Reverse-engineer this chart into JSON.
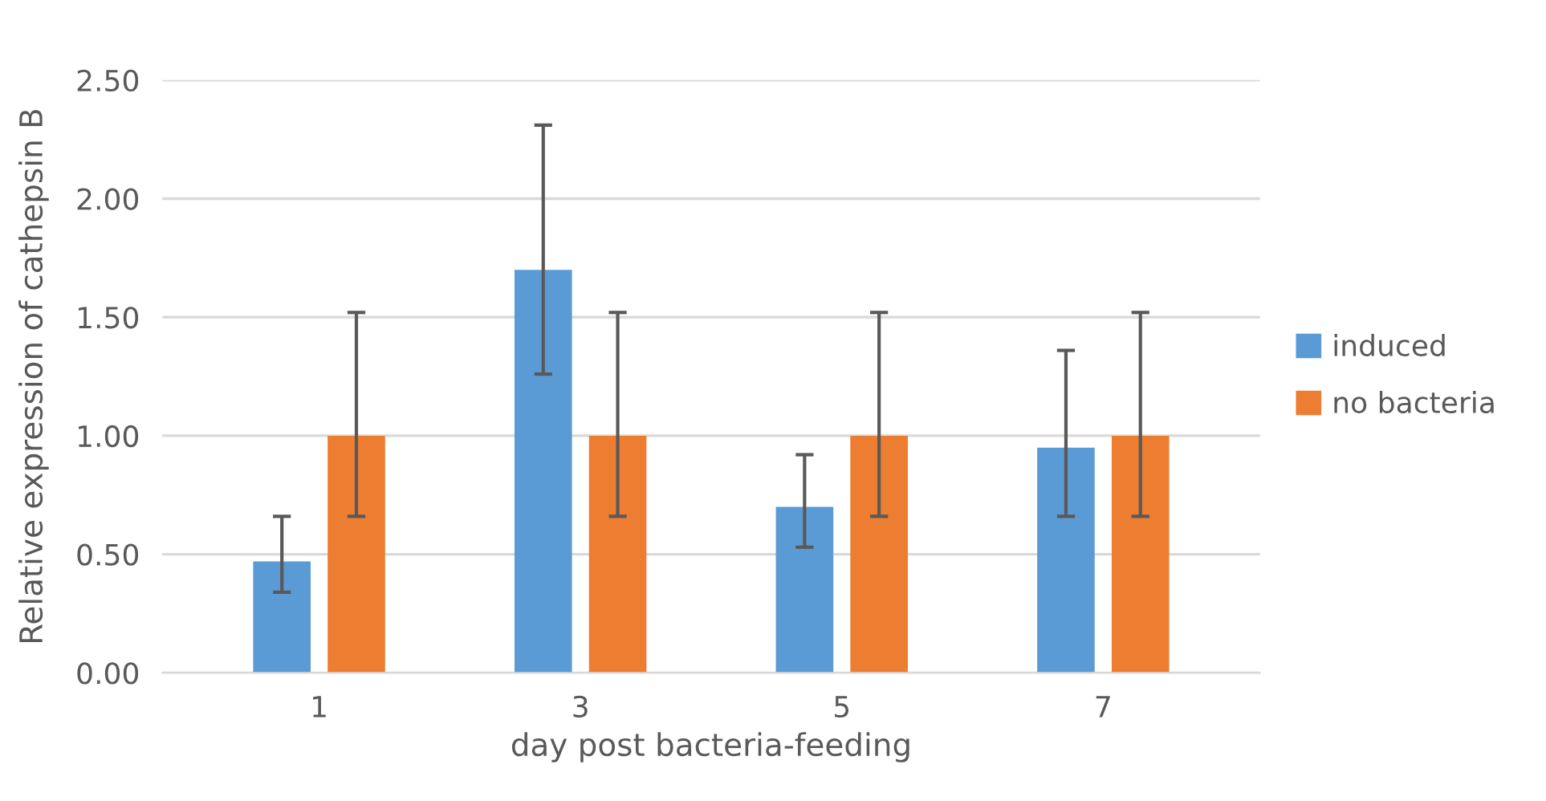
{
  "chart_data": {
    "type": "bar",
    "xlabel": "day post bacteria-feeding",
    "ylabel": "Relative expression of cathepsin B",
    "categories": [
      "1",
      "3",
      "5",
      "7"
    ],
    "series": [
      {
        "name": "induced",
        "color": "#5b9bd5",
        "values": [
          0.47,
          1.7,
          0.7,
          0.95
        ],
        "errors": [
          [
            0.34,
            0.66
          ],
          [
            1.26,
            2.31
          ],
          [
            0.53,
            0.92
          ],
          [
            0.66,
            1.36
          ]
        ]
      },
      {
        "name": "no bacteria",
        "color": "#ed7d31",
        "values": [
          1.0,
          1.0,
          1.0,
          1.0
        ],
        "errors": [
          [
            0.66,
            1.52
          ],
          [
            0.66,
            1.52
          ],
          [
            0.66,
            1.52
          ],
          [
            0.66,
            1.52
          ]
        ]
      }
    ],
    "ylim": [
      0,
      2.5
    ],
    "yticks": [
      {
        "value": 0,
        "label": "0.00"
      },
      {
        "value": 0.5,
        "label": "0.50"
      },
      {
        "value": 1,
        "label": "1.00"
      },
      {
        "value": 1.5,
        "label": "1.50"
      },
      {
        "value": 2,
        "label": "2.00"
      },
      {
        "value": 2.5,
        "label": "2.50"
      }
    ],
    "grid": "y",
    "legend": "right"
  }
}
